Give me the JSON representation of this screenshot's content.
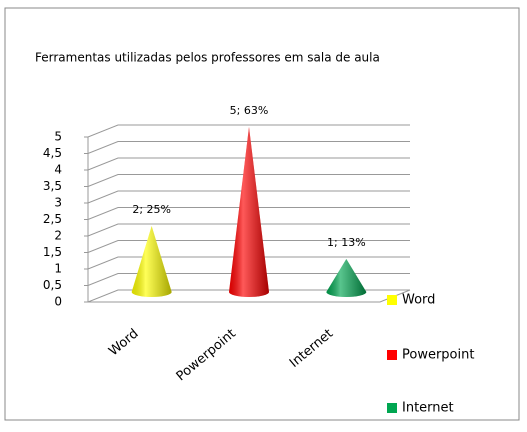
{
  "chart_data": {
    "type": "cone",
    "title": "Ferramentas utilizadas pelos professores em sala de aula",
    "categories": [
      "Word",
      "Powerpoint",
      "Internet"
    ],
    "values": [
      2,
      5,
      1
    ],
    "value_labels": [
      "2; 25%",
      "5; 63%",
      "1; 13%"
    ],
    "colors": [
      "#ffff00",
      "#ff0000",
      "#00a651"
    ],
    "ylim": [
      0,
      5
    ],
    "yticks": [
      0,
      {
        "value": 0.5,
        "label": "0,5"
      },
      1,
      {
        "value": 1.5,
        "label": "1,5"
      },
      2,
      {
        "value": 2.5,
        "label": "2,5"
      },
      3,
      {
        "value": 3.5,
        "label": "3,5"
      },
      4,
      {
        "value": 4.5,
        "label": "4,5"
      },
      5
    ],
    "grid": true,
    "legend": "right"
  }
}
